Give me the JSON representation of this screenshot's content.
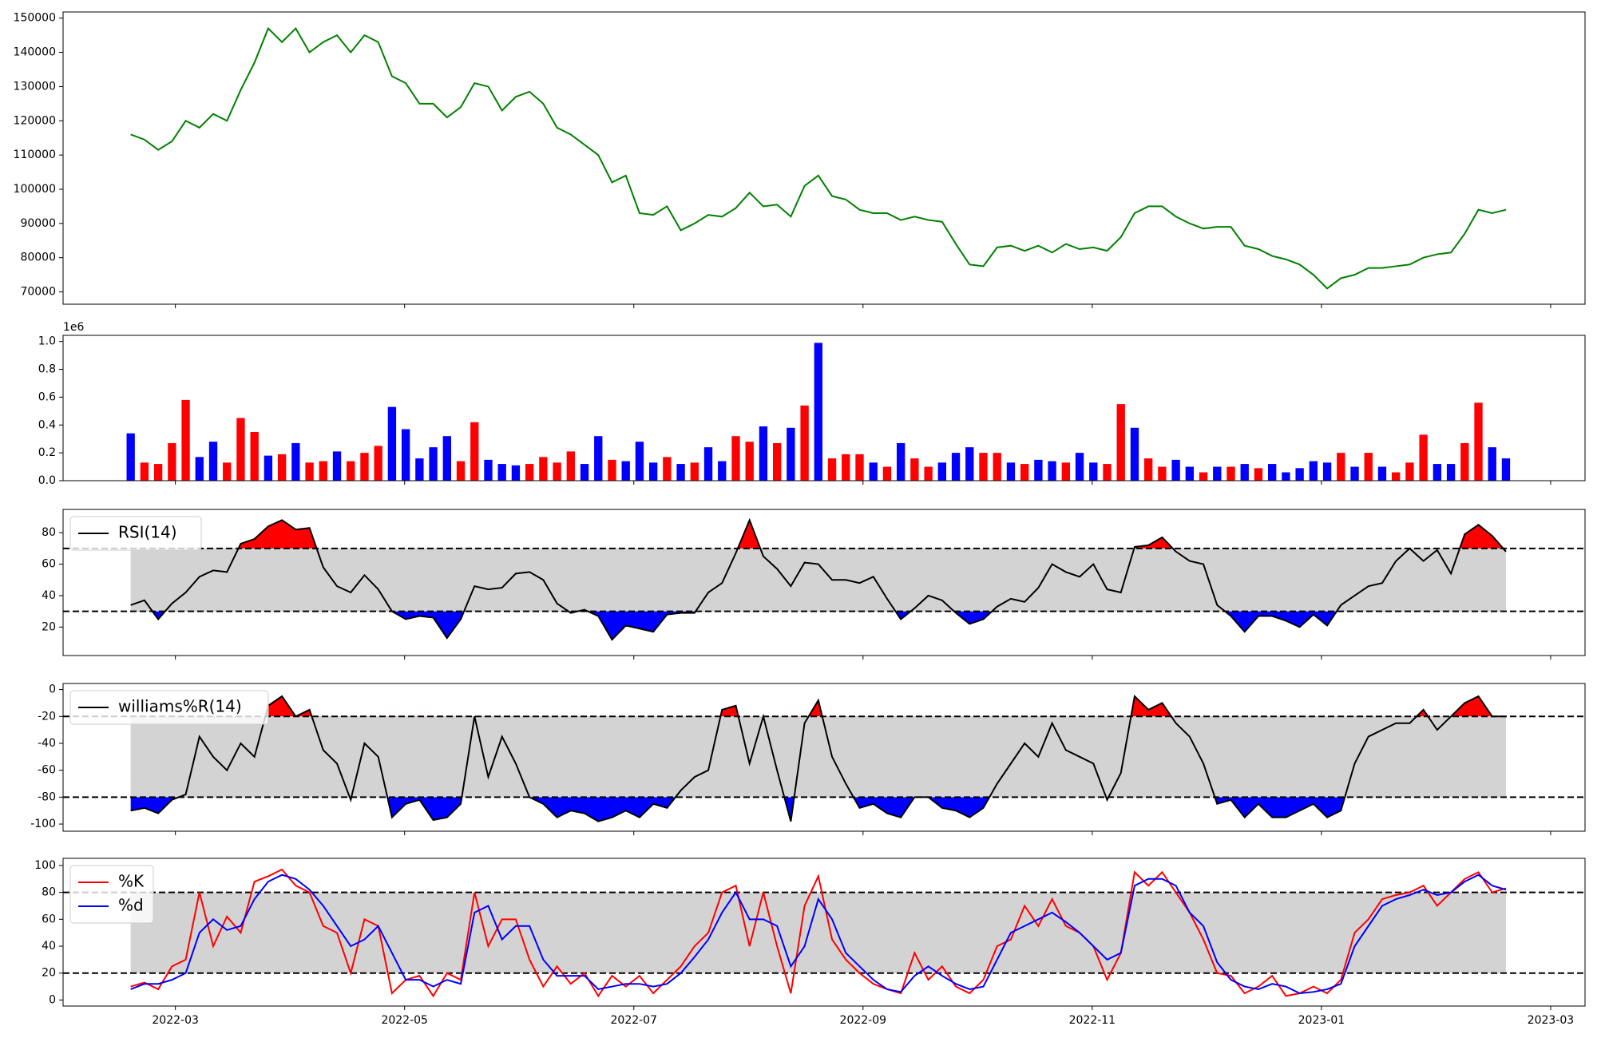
{
  "chart_data": [
    {
      "type": "line",
      "series": [
        {
          "color": "green",
          "values": [
            116000,
            114500,
            111500,
            114000,
            120000,
            118000,
            122000,
            120000,
            129000,
            137000,
            147000,
            143000,
            147000,
            140000,
            143000,
            145000,
            140000,
            145000,
            143000,
            133000,
            131000,
            125000,
            125000,
            121000,
            124000,
            131000,
            130000,
            123000,
            127000,
            128500,
            125000,
            118000,
            116000,
            113000,
            110000,
            102000,
            104000,
            93000,
            92500,
            95000,
            88000,
            90000,
            92500,
            92000,
            94500,
            99000,
            95000,
            95500,
            92000,
            101000,
            104000,
            98000,
            97000,
            94000,
            93000,
            93000,
            91000,
            92000,
            91000,
            90500,
            84000,
            78000,
            77500,
            83000,
            83500,
            82000,
            83500,
            81500,
            84000,
            82500,
            83000,
            82000,
            86000,
            93000,
            95000,
            95000,
            92000,
            90000,
            88500,
            89000,
            89000,
            83500,
            82500,
            80500,
            79500,
            78000,
            75000,
            71000,
            74000,
            75000,
            77000,
            77000,
            77500,
            78000,
            80000,
            81000,
            81500,
            87000,
            94000,
            93000,
            94000
          ]
        }
      ],
      "ylim": [
        66400,
        151800
      ],
      "yticks": [
        70000,
        80000,
        90000,
        100000,
        110000,
        120000,
        130000,
        140000,
        150000
      ]
    },
    {
      "type": "bar",
      "offset_label": "1e6",
      "values": [
        340000,
        130000,
        120000,
        270000,
        580000,
        170000,
        280000,
        130000,
        450000,
        350000,
        180000,
        190000,
        270000,
        130000,
        140000,
        210000,
        140000,
        200000,
        250000,
        530000,
        370000,
        160000,
        240000,
        320000,
        140000,
        420000,
        150000,
        120000,
        110000,
        120000,
        170000,
        130000,
        210000,
        120000,
        320000,
        150000,
        140000,
        280000,
        130000,
        170000,
        120000,
        130000,
        240000,
        140000,
        320000,
        280000,
        390000,
        270000,
        380000,
        540000,
        990000,
        160000,
        190000,
        190000,
        130000,
        100000,
        270000,
        160000,
        100000,
        130000,
        200000,
        240000,
        200000,
        200000,
        130000,
        120000,
        150000,
        140000,
        130000,
        200000,
        130000,
        120000,
        550000,
        380000,
        160000,
        100000,
        150000,
        100000,
        60000,
        100000,
        100000,
        120000,
        90000,
        120000,
        60000,
        90000,
        140000,
        130000,
        200000,
        100000,
        200000,
        100000,
        60000,
        130000,
        330000,
        120000,
        120000,
        270000,
        560000,
        240000,
        160000
      ],
      "colors": [
        "blue",
        "red",
        "red",
        "red",
        "red",
        "blue",
        "blue",
        "red",
        "red",
        "red",
        "blue",
        "red",
        "blue",
        "red",
        "red",
        "blue",
        "red",
        "red",
        "red",
        "blue",
        "blue",
        "blue",
        "blue",
        "blue",
        "red",
        "red",
        "blue",
        "blue",
        "blue",
        "red",
        "red",
        "red",
        "red",
        "blue",
        "blue",
        "red",
        "blue",
        "blue",
        "blue",
        "red",
        "blue",
        "red",
        "blue",
        "blue",
        "red",
        "red",
        "blue",
        "red",
        "blue",
        "red",
        "blue",
        "red",
        "red",
        "red",
        "blue",
        "red",
        "blue",
        "red",
        "red",
        "blue",
        "blue",
        "blue",
        "red",
        "red",
        "blue",
        "red",
        "blue",
        "blue",
        "red",
        "blue",
        "blue",
        "red",
        "red",
        "blue",
        "red",
        "red",
        "blue",
        "blue",
        "red",
        "blue",
        "red",
        "blue",
        "red",
        "blue",
        "blue",
        "blue",
        "blue",
        "blue",
        "red",
        "blue",
        "red",
        "blue",
        "red",
        "red",
        "red",
        "blue",
        "blue",
        "red",
        "red",
        "blue",
        "blue"
      ],
      "ylim": [
        0,
        1044000
      ],
      "yticks": [
        {
          "value": 0,
          "label": "0.0"
        },
        {
          "value": 200000,
          "label": "0.2"
        },
        {
          "value": 400000,
          "label": "0.4"
        },
        {
          "value": 600000,
          "label": "0.6"
        },
        {
          "value": 800000,
          "label": "0.8"
        },
        {
          "value": 1000000,
          "label": "1.0"
        }
      ]
    },
    {
      "type": "line",
      "legend": "upper left",
      "levels": [
        30,
        70
      ],
      "band_color": "lightgray",
      "above_color": "red",
      "below_color": "blue",
      "series": [
        {
          "name": "RSI(14)",
          "color": "black",
          "values": [
            34,
            37,
            25,
            35,
            42,
            52,
            56,
            55,
            73,
            76,
            84,
            88,
            82,
            83,
            58,
            46,
            42,
            53,
            44,
            30,
            25,
            27,
            26,
            13,
            25,
            46,
            44,
            45,
            54,
            55,
            50,
            35,
            29,
            31,
            27,
            12,
            21,
            19,
            17,
            28,
            29,
            29,
            42,
            48,
            67,
            88,
            65,
            57,
            46,
            61,
            60,
            50,
            50,
            48,
            52,
            38,
            25,
            32,
            40,
            37,
            29,
            22,
            25,
            33,
            38,
            36,
            45,
            60,
            55,
            52,
            60,
            44,
            42,
            71,
            72,
            77,
            68,
            62,
            60,
            34,
            27,
            17,
            27,
            27,
            24,
            20,
            28,
            21,
            34,
            40,
            46,
            48,
            62,
            70,
            62,
            69,
            54,
            79,
            85,
            78,
            68
          ]
        }
      ],
      "ylim": [
        1.9,
        94.8
      ],
      "yticks": [
        20,
        40,
        60,
        80
      ]
    },
    {
      "type": "line",
      "legend": "upper left",
      "levels": [
        -80,
        -20
      ],
      "band_color": "lightgray",
      "above_color": "red",
      "below_color": "blue",
      "series": [
        {
          "name": "williams%R(14)",
          "color": "black",
          "values": [
            -90,
            -88,
            -92,
            -82,
            -78,
            -35,
            -50,
            -60,
            -40,
            -50,
            -12,
            -5,
            -20,
            -15,
            -45,
            -55,
            -82,
            -40,
            -50,
            -95,
            -85,
            -82,
            -97,
            -95,
            -85,
            -20,
            -65,
            -35,
            -55,
            -80,
            -85,
            -95,
            -90,
            -92,
            -98,
            -95,
            -90,
            -95,
            -85,
            -88,
            -75,
            -65,
            -60,
            -15,
            -12,
            -55,
            -20,
            -60,
            -98,
            -25,
            -8,
            -50,
            -70,
            -88,
            -85,
            -92,
            -95,
            -80,
            -80,
            -88,
            -90,
            -95,
            -88,
            -70,
            -55,
            -40,
            -50,
            -25,
            -45,
            -50,
            -55,
            -82,
            -62,
            -5,
            -15,
            -10,
            -25,
            -35,
            -55,
            -85,
            -82,
            -95,
            -85,
            -95,
            -95,
            -90,
            -85,
            -95,
            -90,
            -55,
            -35,
            -30,
            -25,
            -25,
            -15,
            -30,
            -20,
            -10,
            -5,
            -20,
            -20
          ]
        }
      ],
      "ylim": [
        -105.3,
        4.5
      ],
      "yticks": [
        -100,
        -80,
        -60,
        -40,
        -20,
        0
      ]
    },
    {
      "type": "line",
      "legend": "upper left",
      "levels": [
        20,
        80
      ],
      "band_color": "lightgray",
      "x": [
        2.61,
        2.73,
        2.85,
        2.97,
        3.09,
        3.21,
        3.33,
        3.45,
        3.57,
        3.69,
        3.81,
        3.93,
        4.05,
        4.17,
        4.29,
        4.41,
        4.53,
        4.65,
        4.77,
        4.89,
        5.01,
        5.13,
        5.25,
        5.37,
        5.49,
        5.61,
        5.73,
        5.85,
        5.97,
        6.09,
        6.21,
        6.33,
        6.45,
        6.57,
        6.69,
        6.81,
        6.93,
        7.05,
        7.17,
        7.29,
        7.41,
        7.53,
        7.65,
        7.77,
        7.89,
        8.01,
        8.13,
        8.25,
        8.37,
        8.49,
        8.61,
        8.73,
        8.85,
        8.97,
        9.09,
        9.21,
        9.33,
        9.45,
        9.57,
        9.69,
        9.81,
        9.93,
        10.05,
        10.17,
        10.29,
        10.41,
        10.53,
        10.65,
        10.77,
        10.89,
        11.01,
        11.13,
        11.25,
        11.37,
        11.49,
        11.61,
        11.73,
        11.85,
        11.97,
        12.09,
        12.21,
        12.33,
        12.45,
        12.57,
        12.69,
        12.81,
        12.93,
        13.05,
        13.17,
        13.29,
        13.41,
        13.53,
        13.65,
        13.77,
        13.89,
        14.01,
        14.13,
        14.25,
        14.37,
        14.49,
        14.61
      ],
      "xlim": [
        2.02,
        15.3
      ],
      "xticks": [
        {
          "value": 3,
          "label": "2022-03"
        },
        {
          "value": 5,
          "label": "2022-05"
        },
        {
          "value": 7,
          "label": "2022-07"
        },
        {
          "value": 9,
          "label": "2022-09"
        },
        {
          "value": 11,
          "label": "2022-11"
        },
        {
          "value": 13,
          "label": "2023-01"
        },
        {
          "value": 15,
          "label": "2023-03"
        }
      ],
      "series": [
        {
          "name": "%K",
          "color": "red",
          "values": [
            10,
            13,
            8,
            25,
            30,
            80,
            40,
            62,
            50,
            88,
            92,
            97,
            85,
            80,
            55,
            50,
            20,
            60,
            55,
            5,
            15,
            18,
            3,
            20,
            15,
            80,
            40,
            60,
            60,
            30,
            10,
            25,
            12,
            20,
            3,
            18,
            10,
            18,
            5,
            15,
            25,
            40,
            50,
            80,
            85,
            40,
            80,
            40,
            5,
            70,
            92,
            45,
            30,
            20,
            12,
            8,
            5,
            35,
            15,
            25,
            10,
            5,
            15,
            40,
            45,
            70,
            55,
            75,
            55,
            50,
            40,
            15,
            35,
            95,
            85,
            95,
            80,
            65,
            45,
            20,
            18,
            5,
            10,
            18,
            3,
            5,
            10,
            5,
            15,
            50,
            60,
            75,
            78,
            80,
            85,
            70,
            80,
            90,
            95,
            80,
            83
          ]
        },
        {
          "name": "%d",
          "color": "blue",
          "values": [
            8,
            12,
            12,
            15,
            20,
            50,
            60,
            52,
            55,
            75,
            88,
            93,
            90,
            82,
            70,
            55,
            40,
            45,
            55,
            35,
            15,
            15,
            10,
            15,
            12,
            65,
            70,
            45,
            55,
            55,
            30,
            18,
            18,
            18,
            8,
            10,
            12,
            12,
            10,
            12,
            20,
            32,
            45,
            65,
            80,
            60,
            60,
            55,
            25,
            40,
            75,
            60,
            35,
            25,
            15,
            8,
            6,
            18,
            25,
            18,
            12,
            8,
            10,
            30,
            50,
            55,
            60,
            65,
            58,
            50,
            40,
            30,
            35,
            85,
            90,
            90,
            85,
            65,
            55,
            28,
            15,
            10,
            8,
            12,
            10,
            5,
            6,
            8,
            12,
            40,
            55,
            70,
            75,
            78,
            82,
            78,
            80,
            88,
            93,
            85,
            82
          ]
        }
      ],
      "ylim": [
        -4.5,
        105.3
      ],
      "yticks": [
        0,
        20,
        40,
        60,
        80,
        100
      ]
    }
  ]
}
